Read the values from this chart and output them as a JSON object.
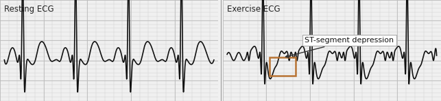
{
  "title_left": "Resting ECG",
  "title_right": "Exercise ECG",
  "annotation_text": "ST-segment depression",
  "bg_color": "#f0f0f0",
  "grid_color": "#cccccc",
  "ecg_color": "#111111",
  "annotation_box_color": "#b87333",
  "annotation_text_color": "#111111",
  "divider_color": "#999999",
  "title_fontsize": 8.5,
  "annotation_fontsize": 8
}
